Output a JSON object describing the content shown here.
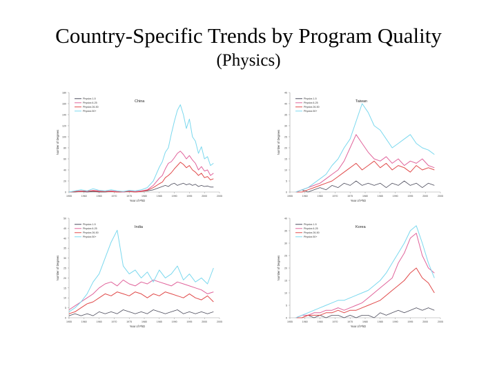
{
  "slide": {
    "title": "Country-Specific Trends by Program Quality",
    "subtitle": "(Physics)"
  },
  "chart_data": [
    {
      "type": "line",
      "country": "China",
      "xlabel": "Year of PhD",
      "ylabel": "Number of Degrees",
      "xlim": [
        1955,
        2005
      ],
      "ylim": [
        0,
        180
      ],
      "x_ticks": [
        "1955",
        "1960",
        "1965",
        "1970",
        "1975",
        "1980",
        "1985",
        "1990",
        "1995",
        "2000",
        "2005"
      ],
      "y_ticks": [
        "0",
        "20",
        "40",
        "60",
        "80",
        "100",
        "120",
        "140",
        "160",
        "180"
      ],
      "legend": [
        "Physics 1-5",
        "Physics 6-25",
        "Physics 26-50",
        "Physics 50+"
      ],
      "legend_position": "top-left",
      "colors": [
        "#4a4a5a",
        "#e0629a",
        "#e04848",
        "#7ad8ee"
      ],
      "x": [
        1955,
        1957,
        1959,
        1961,
        1963,
        1965,
        1967,
        1969,
        1971,
        1973,
        1975,
        1977,
        1979,
        1981,
        1983,
        1985,
        1986,
        1987,
        1988,
        1989,
        1990,
        1991,
        1992,
        1993,
        1994,
        1995,
        1996,
        1997,
        1998,
        1999,
        2000,
        2001,
        2002,
        2003
      ],
      "series": [
        {
          "name": "Physics 1-5",
          "values": [
            0,
            0,
            1,
            0,
            1,
            0,
            0,
            1,
            0,
            0,
            1,
            0,
            1,
            2,
            4,
            8,
            10,
            12,
            10,
            14,
            16,
            12,
            14,
            16,
            13,
            15,
            12,
            14,
            10,
            12,
            10,
            11,
            9,
            9
          ]
        },
        {
          "name": "Physics 6-25",
          "values": [
            0,
            1,
            2,
            1,
            3,
            2,
            1,
            2,
            1,
            0,
            2,
            1,
            2,
            4,
            12,
            25,
            30,
            42,
            52,
            55,
            62,
            70,
            74,
            68,
            60,
            66,
            58,
            52,
            40,
            46,
            38,
            40,
            30,
            34
          ]
        },
        {
          "name": "Physics 26-50",
          "values": [
            0,
            1,
            1,
            2,
            2,
            1,
            1,
            1,
            0,
            1,
            1,
            0,
            1,
            3,
            8,
            15,
            18,
            26,
            30,
            35,
            42,
            48,
            54,
            50,
            44,
            48,
            40,
            36,
            30,
            34,
            26,
            28,
            22,
            24
          ]
        },
        {
          "name": "Physics 50+",
          "values": [
            0,
            2,
            4,
            2,
            6,
            3,
            2,
            4,
            2,
            1,
            3,
            2,
            4,
            8,
            20,
            45,
            55,
            72,
            80,
            105,
            128,
            148,
            158,
            140,
            115,
            132,
            100,
            92,
            70,
            82,
            60,
            64,
            48,
            52
          ]
        }
      ]
    },
    {
      "type": "line",
      "country": "Taiwan",
      "xlabel": "Year of PhD",
      "ylabel": "Number of Degrees",
      "xlim": [
        1955,
        2005
      ],
      "ylim": [
        0,
        45
      ],
      "x_ticks": [
        "1955",
        "1960",
        "1965",
        "1970",
        "1975",
        "1980",
        "1985",
        "1990",
        "1995",
        "2000",
        "2005"
      ],
      "y_ticks": [
        "0",
        "5",
        "10",
        "15",
        "20",
        "25",
        "30",
        "35",
        "40",
        "45"
      ],
      "legend": [
        "Physics 1-5",
        "Physics 6-25",
        "Physics 26-50",
        "Physics 50+"
      ],
      "legend_position": "top-left",
      "colors": [
        "#4a4a5a",
        "#e0629a",
        "#e04848",
        "#7ad8ee"
      ],
      "x": [
        1957,
        1959,
        1961,
        1963,
        1965,
        1967,
        1969,
        1971,
        1973,
        1975,
        1977,
        1979,
        1981,
        1983,
        1985,
        1987,
        1989,
        1991,
        1993,
        1995,
        1997,
        1999,
        2001,
        2003
      ],
      "series": [
        {
          "name": "Physics 1-5",
          "values": [
            0,
            1,
            0,
            1,
            2,
            1,
            3,
            2,
            4,
            3,
            5,
            3,
            4,
            3,
            4,
            2,
            4,
            3,
            5,
            3,
            4,
            2,
            4,
            3
          ]
        },
        {
          "name": "Physics 6-25",
          "values": [
            0,
            1,
            2,
            3,
            4,
            6,
            8,
            10,
            14,
            20,
            26,
            22,
            18,
            15,
            14,
            16,
            13,
            15,
            12,
            14,
            13,
            15,
            12,
            11
          ]
        },
        {
          "name": "Physics 26-50",
          "values": [
            0,
            0,
            1,
            2,
            3,
            4,
            5,
            7,
            9,
            11,
            13,
            10,
            12,
            14,
            11,
            13,
            10,
            12,
            11,
            9,
            12,
            10,
            11,
            10
          ]
        },
        {
          "name": "Physics 50+",
          "values": [
            0,
            1,
            2,
            4,
            6,
            8,
            12,
            15,
            20,
            24,
            32,
            40,
            36,
            30,
            28,
            24,
            20,
            22,
            24,
            26,
            22,
            20,
            19,
            17
          ]
        }
      ]
    },
    {
      "type": "line",
      "country": "India",
      "xlabel": "Year of PhD",
      "ylabel": "Number of Degrees",
      "xlim": [
        1955,
        2005
      ],
      "ylim": [
        0,
        50
      ],
      "x_ticks": [
        "1955",
        "1960",
        "1965",
        "1970",
        "1975",
        "1980",
        "1985",
        "1990",
        "1995",
        "2000",
        "2005"
      ],
      "y_ticks": [
        "0",
        "5",
        "10",
        "15",
        "20",
        "25",
        "30",
        "35",
        "40",
        "45",
        "50"
      ],
      "legend": [
        "Physics 1-5",
        "Physics 6-25",
        "Physics 26-50",
        "Physics 50+"
      ],
      "legend_position": "top-left",
      "colors": [
        "#4a4a5a",
        "#e0629a",
        "#e04848",
        "#7ad8ee"
      ],
      "x": [
        1955,
        1957,
        1959,
        1961,
        1963,
        1965,
        1967,
        1969,
        1971,
        1973,
        1975,
        1977,
        1979,
        1981,
        1983,
        1985,
        1987,
        1989,
        1991,
        1993,
        1995,
        1997,
        1999,
        2001,
        2003
      ],
      "series": [
        {
          "name": "Physics 1-5",
          "values": [
            1,
            2,
            1,
            2,
            1,
            3,
            2,
            3,
            2,
            4,
            3,
            2,
            3,
            2,
            4,
            3,
            2,
            3,
            4,
            2,
            3,
            2,
            3,
            2,
            3
          ]
        },
        {
          "name": "Physics 6-25",
          "values": [
            4,
            6,
            8,
            10,
            12,
            15,
            17,
            18,
            16,
            19,
            17,
            16,
            18,
            17,
            19,
            18,
            17,
            16,
            18,
            17,
            16,
            15,
            14,
            12,
            13
          ]
        },
        {
          "name": "Physics 26-50",
          "values": [
            2,
            3,
            5,
            7,
            8,
            10,
            12,
            11,
            13,
            12,
            11,
            13,
            12,
            10,
            12,
            11,
            13,
            12,
            11,
            10,
            12,
            10,
            9,
            11,
            8
          ]
        },
        {
          "name": "Physics 50+",
          "values": [
            3,
            5,
            8,
            12,
            18,
            22,
            30,
            38,
            44,
            26,
            22,
            24,
            20,
            23,
            18,
            24,
            20,
            22,
            26,
            19,
            22,
            18,
            20,
            17,
            25
          ]
        }
      ]
    },
    {
      "type": "line",
      "country": "Korea",
      "xlabel": "Year of PhD",
      "ylabel": "Number of Degrees",
      "xlim": [
        1955,
        2005
      ],
      "ylim": [
        0,
        40
      ],
      "x_ticks": [
        "1955",
        "1960",
        "1965",
        "1970",
        "1975",
        "1980",
        "1985",
        "1990",
        "1995",
        "2000",
        "2005"
      ],
      "y_ticks": [
        "0",
        "5",
        "10",
        "15",
        "20",
        "25",
        "30",
        "35",
        "40"
      ],
      "legend": [
        "Physics 1-5",
        "Physics 6-25",
        "Physics 26-50",
        "Physics 50+"
      ],
      "legend_position": "top-left",
      "colors": [
        "#4a4a5a",
        "#e0629a",
        "#e04848",
        "#7ad8ee"
      ],
      "x": [
        1957,
        1959,
        1961,
        1963,
        1965,
        1967,
        1969,
        1971,
        1973,
        1975,
        1977,
        1979,
        1981,
        1983,
        1985,
        1987,
        1989,
        1991,
        1993,
        1995,
        1997,
        1999,
        2001,
        2003
      ],
      "series": [
        {
          "name": "Physics 1-5",
          "values": [
            0,
            0,
            1,
            0,
            1,
            0,
            1,
            1,
            0,
            1,
            0,
            1,
            1,
            0,
            2,
            1,
            2,
            3,
            2,
            3,
            4,
            3,
            4,
            3
          ]
        },
        {
          "name": "Physics 6-25",
          "values": [
            0,
            1,
            1,
            2,
            2,
            3,
            3,
            4,
            3,
            4,
            5,
            6,
            8,
            10,
            12,
            14,
            16,
            22,
            26,
            32,
            34,
            25,
            20,
            18
          ]
        },
        {
          "name": "Physics 26-50",
          "values": [
            0,
            0,
            1,
            1,
            1,
            2,
            2,
            3,
            2,
            3,
            3,
            4,
            5,
            6,
            7,
            9,
            11,
            13,
            15,
            18,
            20,
            16,
            14,
            10
          ]
        },
        {
          "name": "Physics 50+",
          "values": [
            0,
            1,
            2,
            3,
            4,
            5,
            6,
            7,
            7,
            8,
            9,
            10,
            11,
            13,
            15,
            18,
            22,
            26,
            30,
            35,
            37,
            30,
            22,
            16
          ]
        }
      ]
    }
  ]
}
